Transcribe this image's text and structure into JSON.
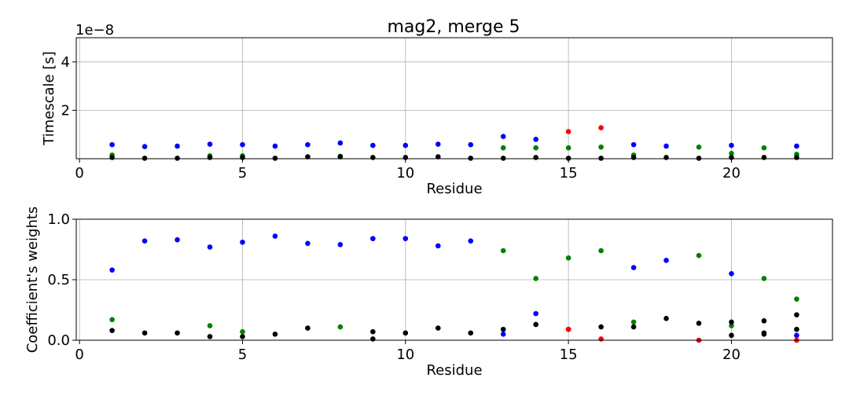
{
  "chart_data": [
    {
      "type": "scatter",
      "title": "mag2, merge 5",
      "xlabel": "Residue",
      "ylabel": "Timescale [s]",
      "offset_label": "1e−8",
      "xlim": [
        -0.1,
        23.1
      ],
      "ylim": [
        0,
        5.0
      ],
      "xticks": [
        0,
        5,
        10,
        15,
        20
      ],
      "yticks": [
        2,
        4
      ],
      "ytick_labels": [
        "2",
        "4"
      ],
      "grid": true,
      "series": [
        {
          "color": "#0000ff",
          "points": [
            [
              1,
              0.58
            ],
            [
              2,
              0.5
            ],
            [
              3,
              0.52
            ],
            [
              4,
              0.6
            ],
            [
              5,
              0.58
            ],
            [
              6,
              0.52
            ],
            [
              7,
              0.58
            ],
            [
              8,
              0.65
            ],
            [
              9,
              0.55
            ],
            [
              10,
              0.55
            ],
            [
              11,
              0.6
            ],
            [
              12,
              0.58
            ],
            [
              13,
              0.92
            ],
            [
              14,
              0.8
            ],
            [
              17,
              0.58
            ],
            [
              18,
              0.52
            ],
            [
              20,
              0.55
            ],
            [
              22,
              0.52
            ]
          ]
        },
        {
          "color": "#008000",
          "points": [
            [
              1,
              0.15
            ],
            [
              4,
              0.12
            ],
            [
              5,
              0.12
            ],
            [
              8,
              0.1
            ],
            [
              13,
              0.45
            ],
            [
              14,
              0.45
            ],
            [
              15,
              0.45
            ],
            [
              16,
              0.48
            ],
            [
              17,
              0.15
            ],
            [
              19,
              0.48
            ],
            [
              20,
              0.22
            ],
            [
              21,
              0.45
            ],
            [
              22,
              0.18
            ]
          ]
        },
        {
          "color": "#ff0000",
          "points": [
            [
              15,
              1.12
            ],
            [
              16,
              1.28
            ]
          ]
        },
        {
          "color": "#000000",
          "points": [
            [
              1,
              0.05
            ],
            [
              2,
              0.02
            ],
            [
              3,
              0.02
            ],
            [
              4,
              0.05
            ],
            [
              5,
              0.05
            ],
            [
              6,
              0.02
            ],
            [
              7,
              0.08
            ],
            [
              8,
              0.08
            ],
            [
              9,
              0.05
            ],
            [
              10,
              0.05
            ],
            [
              11,
              0.08
            ],
            [
              12,
              0.02
            ],
            [
              13,
              0.02
            ],
            [
              14,
              0.05
            ],
            [
              15,
              0.02
            ],
            [
              16,
              0.02
            ],
            [
              17,
              0.05
            ],
            [
              18,
              0.05
            ],
            [
              19,
              0.02
            ],
            [
              20,
              0.05
            ],
            [
              21,
              0.05
            ],
            [
              22,
              0.05
            ]
          ]
        }
      ]
    },
    {
      "type": "scatter",
      "title": "",
      "xlabel": "Residue",
      "ylabel": "Coefficient's weights",
      "xlim": [
        -0.1,
        23.1
      ],
      "ylim": [
        0,
        1.0
      ],
      "xticks": [
        0,
        5,
        10,
        15,
        20
      ],
      "yticks": [
        0.0,
        0.5,
        1.0
      ],
      "ytick_labels": [
        "0.0",
        "0.5",
        "1.0"
      ],
      "grid": true,
      "series": [
        {
          "color": "#0000ff",
          "points": [
            [
              1,
              0.58
            ],
            [
              2,
              0.82
            ],
            [
              3,
              0.83
            ],
            [
              4,
              0.77
            ],
            [
              5,
              0.81
            ],
            [
              6,
              0.86
            ],
            [
              7,
              0.8
            ],
            [
              8,
              0.79
            ],
            [
              9,
              0.84
            ],
            [
              10,
              0.84
            ],
            [
              11,
              0.78
            ],
            [
              12,
              0.82
            ],
            [
              13,
              0.05
            ],
            [
              14,
              0.22
            ],
            [
              15,
              0.09
            ],
            [
              17,
              0.6
            ],
            [
              18,
              0.66
            ],
            [
              20,
              0.55
            ],
            [
              22,
              0.04
            ]
          ]
        },
        {
          "color": "#008000",
          "points": [
            [
              1,
              0.17
            ],
            [
              4,
              0.12
            ],
            [
              5,
              0.07
            ],
            [
              8,
              0.11
            ],
            [
              13,
              0.74
            ],
            [
              14,
              0.51
            ],
            [
              15,
              0.68
            ],
            [
              16,
              0.74
            ],
            [
              17,
              0.15
            ],
            [
              19,
              0.7
            ],
            [
              20,
              0.12
            ],
            [
              21,
              0.51
            ],
            [
              22,
              0.34
            ]
          ]
        },
        {
          "color": "#ff0000",
          "points": [
            [
              15,
              0.09
            ],
            [
              16,
              0.01
            ],
            [
              19,
              0.0
            ],
            [
              22,
              0.0
            ]
          ]
        },
        {
          "color": "#000000",
          "points": [
            [
              1,
              0.08
            ],
            [
              2,
              0.06
            ],
            [
              3,
              0.06
            ],
            [
              4,
              0.03
            ],
            [
              5,
              0.03
            ],
            [
              6,
              0.05
            ],
            [
              7,
              0.1
            ],
            [
              9,
              0.07
            ],
            [
              9,
              0.01
            ],
            [
              10,
              0.06
            ],
            [
              11,
              0.1
            ],
            [
              12,
              0.06
            ],
            [
              13,
              0.09
            ],
            [
              14,
              0.13
            ],
            [
              16,
              0.11
            ],
            [
              17,
              0.11
            ],
            [
              18,
              0.18
            ],
            [
              19,
              0.14
            ],
            [
              20,
              0.15
            ],
            [
              20,
              0.04
            ],
            [
              21,
              0.16
            ],
            [
              21,
              0.06
            ],
            [
              21,
              0.05
            ],
            [
              22,
              0.21
            ],
            [
              22,
              0.09
            ]
          ]
        }
      ]
    }
  ]
}
